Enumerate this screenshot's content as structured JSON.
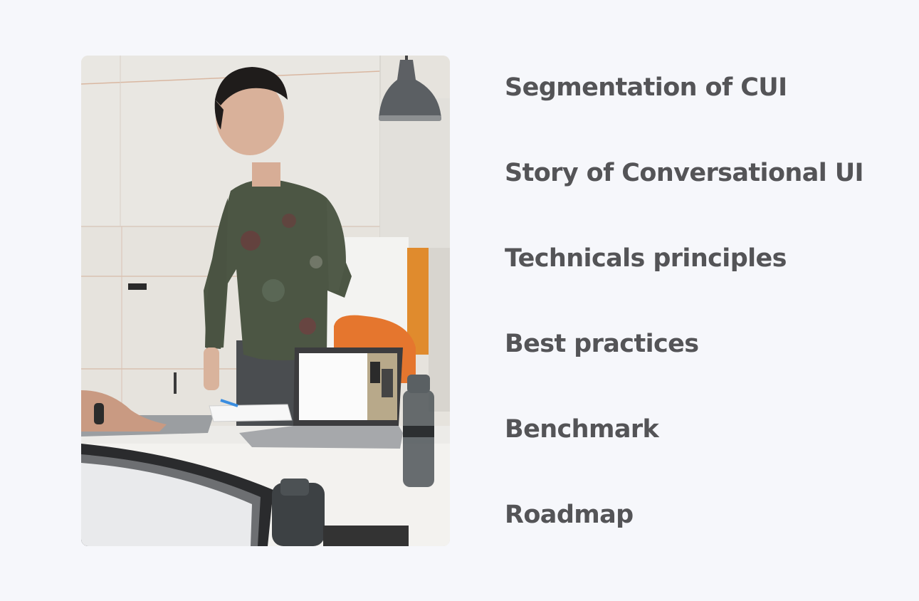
{
  "photo": {
    "icon": "presentation-photo"
  },
  "agenda": {
    "items": [
      {
        "label": "Segmentation of CUI"
      },
      {
        "label": "Story of Conversational UI"
      },
      {
        "label": "Technicals principles"
      },
      {
        "label": "Best practices"
      },
      {
        "label": "Benchmark"
      },
      {
        "label": "Roadmap"
      }
    ],
    "text_color": "#545457"
  },
  "theme": {
    "background": "#f6f7fb"
  }
}
